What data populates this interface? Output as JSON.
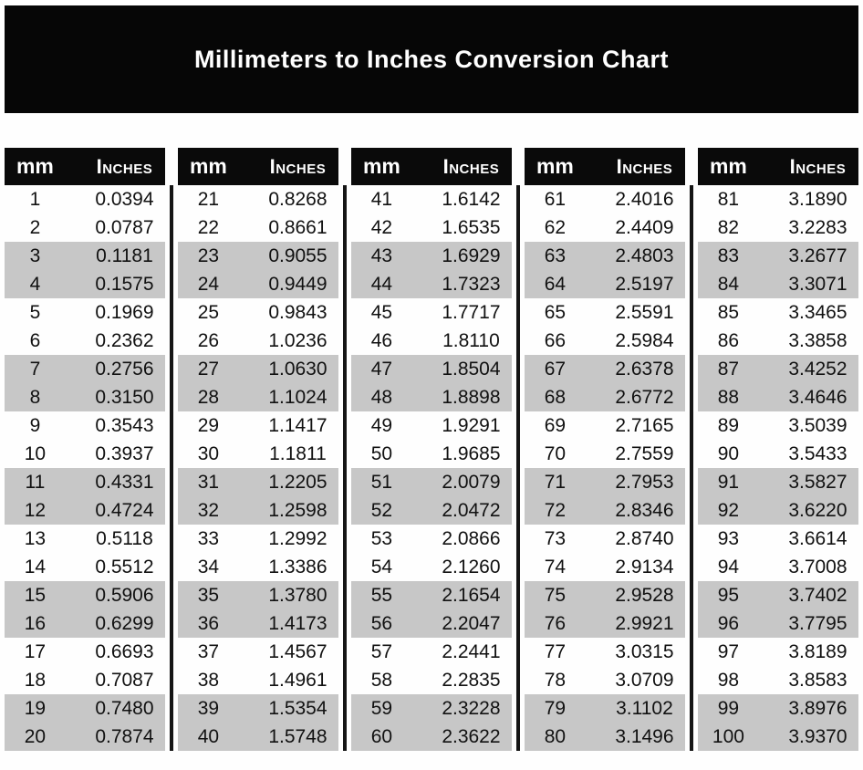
{
  "title": "Millimeters to Inches Conversion Chart",
  "table_header": {
    "mm": "mm",
    "inches": "Inches"
  },
  "colors": {
    "banner_bg": "#060606",
    "header_bg": "#0a0a0a",
    "header_text": "#ffffff",
    "stripe": "#c7c7c7",
    "text": "#111111"
  },
  "chart_data": {
    "type": "table",
    "title": "Millimeters to Inches Conversion Chart",
    "columns": [
      "mm",
      "Inches"
    ],
    "column_groups": 5,
    "rows_per_group": 20,
    "rows": [
      [
        "1",
        "0.0394"
      ],
      [
        "2",
        "0.0787"
      ],
      [
        "3",
        "0.1181"
      ],
      [
        "4",
        "0.1575"
      ],
      [
        "5",
        "0.1969"
      ],
      [
        "6",
        "0.2362"
      ],
      [
        "7",
        "0.2756"
      ],
      [
        "8",
        "0.3150"
      ],
      [
        "9",
        "0.3543"
      ],
      [
        "10",
        "0.3937"
      ],
      [
        "11",
        "0.4331"
      ],
      [
        "12",
        "0.4724"
      ],
      [
        "13",
        "0.5118"
      ],
      [
        "14",
        "0.5512"
      ],
      [
        "15",
        "0.5906"
      ],
      [
        "16",
        "0.6299"
      ],
      [
        "17",
        "0.6693"
      ],
      [
        "18",
        "0.7087"
      ],
      [
        "19",
        "0.7480"
      ],
      [
        "20",
        "0.7874"
      ],
      [
        "21",
        "0.8268"
      ],
      [
        "22",
        "0.8661"
      ],
      [
        "23",
        "0.9055"
      ],
      [
        "24",
        "0.9449"
      ],
      [
        "25",
        "0.9843"
      ],
      [
        "26",
        "1.0236"
      ],
      [
        "27",
        "1.0630"
      ],
      [
        "28",
        "1.1024"
      ],
      [
        "29",
        "1.1417"
      ],
      [
        "30",
        "1.1811"
      ],
      [
        "31",
        "1.2205"
      ],
      [
        "32",
        "1.2598"
      ],
      [
        "33",
        "1.2992"
      ],
      [
        "34",
        "1.3386"
      ],
      [
        "35",
        "1.3780"
      ],
      [
        "36",
        "1.4173"
      ],
      [
        "37",
        "1.4567"
      ],
      [
        "38",
        "1.4961"
      ],
      [
        "39",
        "1.5354"
      ],
      [
        "40",
        "1.5748"
      ],
      [
        "41",
        "1.6142"
      ],
      [
        "42",
        "1.6535"
      ],
      [
        "43",
        "1.6929"
      ],
      [
        "44",
        "1.7323"
      ],
      [
        "45",
        "1.7717"
      ],
      [
        "46",
        "1.8110"
      ],
      [
        "47",
        "1.8504"
      ],
      [
        "48",
        "1.8898"
      ],
      [
        "49",
        "1.9291"
      ],
      [
        "50",
        "1.9685"
      ],
      [
        "51",
        "2.0079"
      ],
      [
        "52",
        "2.0472"
      ],
      [
        "53",
        "2.0866"
      ],
      [
        "54",
        "2.1260"
      ],
      [
        "55",
        "2.1654"
      ],
      [
        "56",
        "2.2047"
      ],
      [
        "57",
        "2.2441"
      ],
      [
        "58",
        "2.2835"
      ],
      [
        "59",
        "2.3228"
      ],
      [
        "60",
        "2.3622"
      ],
      [
        "61",
        "2.4016"
      ],
      [
        "62",
        "2.4409"
      ],
      [
        "63",
        "2.4803"
      ],
      [
        "64",
        "2.5197"
      ],
      [
        "65",
        "2.5591"
      ],
      [
        "66",
        "2.5984"
      ],
      [
        "67",
        "2.6378"
      ],
      [
        "68",
        "2.6772"
      ],
      [
        "69",
        "2.7165"
      ],
      [
        "70",
        "2.7559"
      ],
      [
        "71",
        "2.7953"
      ],
      [
        "72",
        "2.8346"
      ],
      [
        "73",
        "2.8740"
      ],
      [
        "74",
        "2.9134"
      ],
      [
        "75",
        "2.9528"
      ],
      [
        "76",
        "2.9921"
      ],
      [
        "77",
        "3.0315"
      ],
      [
        "78",
        "3.0709"
      ],
      [
        "79",
        "3.1102"
      ],
      [
        "80",
        "3.1496"
      ],
      [
        "81",
        "3.1890"
      ],
      [
        "82",
        "3.2283"
      ],
      [
        "83",
        "3.2677"
      ],
      [
        "84",
        "3.3071"
      ],
      [
        "85",
        "3.3465"
      ],
      [
        "86",
        "3.3858"
      ],
      [
        "87",
        "3.4252"
      ],
      [
        "88",
        "3.4646"
      ],
      [
        "89",
        "3.5039"
      ],
      [
        "90",
        "3.5433"
      ],
      [
        "91",
        "3.5827"
      ],
      [
        "92",
        "3.6220"
      ],
      [
        "93",
        "3.6614"
      ],
      [
        "94",
        "3.7008"
      ],
      [
        "95",
        "3.7402"
      ],
      [
        "96",
        "3.7795"
      ],
      [
        "97",
        "3.8189"
      ],
      [
        "98",
        "3.8583"
      ],
      [
        "99",
        "3.8976"
      ],
      [
        "100",
        "3.9370"
      ]
    ]
  }
}
